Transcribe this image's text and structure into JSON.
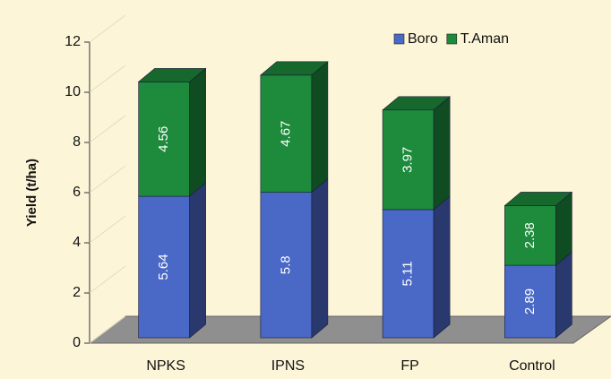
{
  "chart_data": {
    "type": "bar",
    "stacked": true,
    "y_label": "Yield (t/ha)",
    "categories": [
      "NPKS",
      "IPNS",
      "FP",
      "Control"
    ],
    "series": [
      {
        "name": "Boro",
        "color": "#4a68c6",
        "values": [
          5.64,
          5.8,
          5.11,
          2.89
        ]
      },
      {
        "name": "T.Aman",
        "color": "#1d8a3c",
        "values": [
          4.56,
          4.67,
          3.97,
          2.38
        ]
      }
    ],
    "ylim": [
      0,
      12
    ],
    "yticks": [
      0,
      2,
      4,
      6,
      8,
      10,
      12
    ],
    "legend": "top-right"
  }
}
